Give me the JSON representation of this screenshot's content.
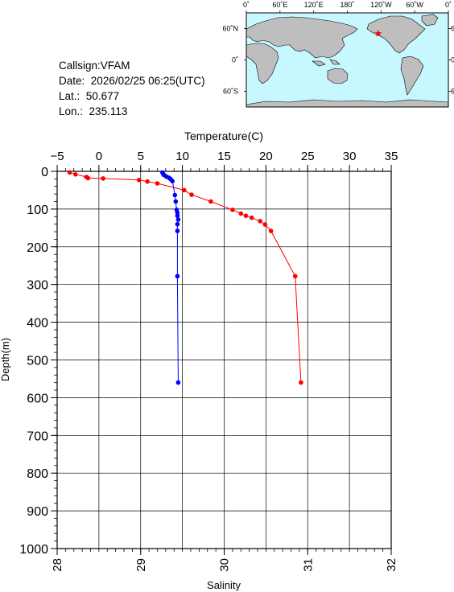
{
  "station": {
    "callsign_label": "Callsign:",
    "callsign": "VFAM",
    "date_label": "Date:",
    "date": "2026/02/25 06:25(UTC)",
    "lat_label": "Lat.:",
    "lat": "50.677",
    "lon_label": "Lon.:",
    "lon": "235.113"
  },
  "map": {
    "lon_ticks": [
      "0˚",
      "60˚E",
      "120˚E",
      "180˚",
      "120˚W",
      "60˚W",
      "0˚"
    ],
    "lat_ticks": [
      "60˚N",
      "0˚",
      "60˚S"
    ],
    "ocean_color": "#c8f8ff",
    "land_color": "#bebebe",
    "marker_color": "#ff0000",
    "marker_lat": 50.677,
    "marker_lon": 235.113
  },
  "chart_data": {
    "type": "line",
    "top_axis": {
      "label": "Temperature(C)",
      "range": [
        -5,
        35
      ],
      "ticks": [
        "−5",
        "0",
        "5",
        "10",
        "15",
        "20",
        "25",
        "30",
        "35"
      ]
    },
    "bottom_axis": {
      "label": "Salinity",
      "range": [
        28,
        32
      ],
      "ticks": [
        "28",
        "29",
        "30",
        "31",
        "32"
      ]
    },
    "left_axis": {
      "label": "Depth(m)",
      "range": [
        0,
        1000
      ],
      "ticks": [
        "0",
        "100",
        "200",
        "300",
        "400",
        "500",
        "600",
        "700",
        "800",
        "900",
        "1000"
      ]
    },
    "grid": true,
    "series": [
      {
        "variable": "temperature",
        "axis": "top",
        "color": "#ff0000",
        "points": [
          {
            "value": -3.5,
            "depth": 3
          },
          {
            "value": -2.8,
            "depth": 8
          },
          {
            "value": -1.5,
            "depth": 15
          },
          {
            "value": -1.3,
            "depth": 18
          },
          {
            "value": 0.5,
            "depth": 19
          },
          {
            "value": 4.8,
            "depth": 23
          },
          {
            "value": 5.8,
            "depth": 27
          },
          {
            "value": 7.0,
            "depth": 32
          },
          {
            "value": 10.2,
            "depth": 50
          },
          {
            "value": 11.1,
            "depth": 62
          },
          {
            "value": 13.4,
            "depth": 80
          },
          {
            "value": 16.0,
            "depth": 102
          },
          {
            "value": 17.0,
            "depth": 112
          },
          {
            "value": 17.6,
            "depth": 118
          },
          {
            "value": 18.3,
            "depth": 123
          },
          {
            "value": 19.3,
            "depth": 132
          },
          {
            "value": 19.9,
            "depth": 141
          },
          {
            "value": 20.6,
            "depth": 158
          },
          {
            "value": 23.5,
            "depth": 278
          },
          {
            "value": 24.2,
            "depth": 560
          }
        ]
      },
      {
        "variable": "salinity",
        "axis": "bottom",
        "color": "#0000ff",
        "points": [
          {
            "value": 29.26,
            "depth": 3
          },
          {
            "value": 29.27,
            "depth": 7
          },
          {
            "value": 29.28,
            "depth": 10
          },
          {
            "value": 29.31,
            "depth": 14
          },
          {
            "value": 29.34,
            "depth": 17
          },
          {
            "value": 29.36,
            "depth": 21
          },
          {
            "value": 29.38,
            "depth": 26
          },
          {
            "value": 29.41,
            "depth": 63
          },
          {
            "value": 29.42,
            "depth": 80
          },
          {
            "value": 29.43,
            "depth": 102
          },
          {
            "value": 29.44,
            "depth": 110
          },
          {
            "value": 29.44,
            "depth": 118
          },
          {
            "value": 29.45,
            "depth": 128
          },
          {
            "value": 29.44,
            "depth": 140
          },
          {
            "value": 29.44,
            "depth": 158
          },
          {
            "value": 29.44,
            "depth": 278
          },
          {
            "value": 29.45,
            "depth": 560
          }
        ]
      }
    ]
  }
}
